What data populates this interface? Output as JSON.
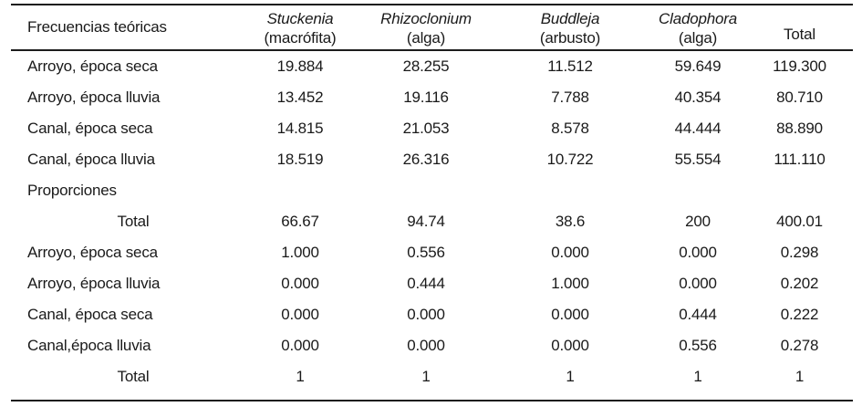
{
  "document": {
    "background_color": "#ffffff",
    "text_color": "#1a1a1a",
    "rule_color": "#1c1c1c"
  },
  "table": {
    "header": {
      "row_header": "Frecuencias teóricas",
      "species_columns": [
        {
          "genus": "Stuckenia",
          "qualifier": "(macrófita)"
        },
        {
          "genus": "Rhizoclonium",
          "qualifier": "(alga)"
        },
        {
          "genus": "Buddleja",
          "qualifier": "(arbusto)"
        },
        {
          "genus": "Cladophora",
          "qualifier": "(alga)"
        }
      ],
      "total_label": "Total"
    },
    "rows": [
      {
        "label": "Arroyo, época seca",
        "label_align": "left",
        "values": [
          "19.884",
          "28.255",
          "11.512",
          "59.649",
          "119.300"
        ]
      },
      {
        "label": "Arroyo, época lluvia",
        "label_align": "left",
        "values": [
          "13.452",
          "19.116",
          "7.788",
          "40.354",
          "80.710"
        ]
      },
      {
        "label": "Canal, época seca",
        "label_align": "left",
        "values": [
          "14.815",
          "21.053",
          "8.578",
          "44.444",
          "88.890"
        ]
      },
      {
        "label": "Canal, época lluvia",
        "label_align": "left",
        "values": [
          "18.519",
          "26.316",
          "10.722",
          "55.554",
          "111.110"
        ]
      },
      {
        "label": "Proporciones",
        "label_align": "left",
        "values": [
          "",
          "",
          "",
          "",
          ""
        ]
      },
      {
        "label": "Total",
        "label_align": "center",
        "values": [
          "66.67",
          "94.74",
          "38.6",
          "200",
          "400.01"
        ]
      },
      {
        "label": "Arroyo, época seca",
        "label_align": "left",
        "values": [
          "1.000",
          "0.556",
          "0.000",
          "0.000",
          "0.298"
        ]
      },
      {
        "label": "Arroyo, época lluvia",
        "label_align": "left",
        "values": [
          "0.000",
          "0.444",
          "1.000",
          "0.000",
          "0.202"
        ]
      },
      {
        "label": "Canal, época seca",
        "label_align": "left",
        "values": [
          "0.000",
          "0.000",
          "0.000",
          "0.444",
          "0.222"
        ]
      },
      {
        "label": "Canal,época lluvia",
        "label_align": "left",
        "values": [
          "0.000",
          "0.000",
          "0.000",
          "0.556",
          "0.278"
        ]
      },
      {
        "label": "Total",
        "label_align": "center",
        "values": [
          "1",
          "1",
          "1",
          "1",
          "1"
        ]
      }
    ]
  }
}
